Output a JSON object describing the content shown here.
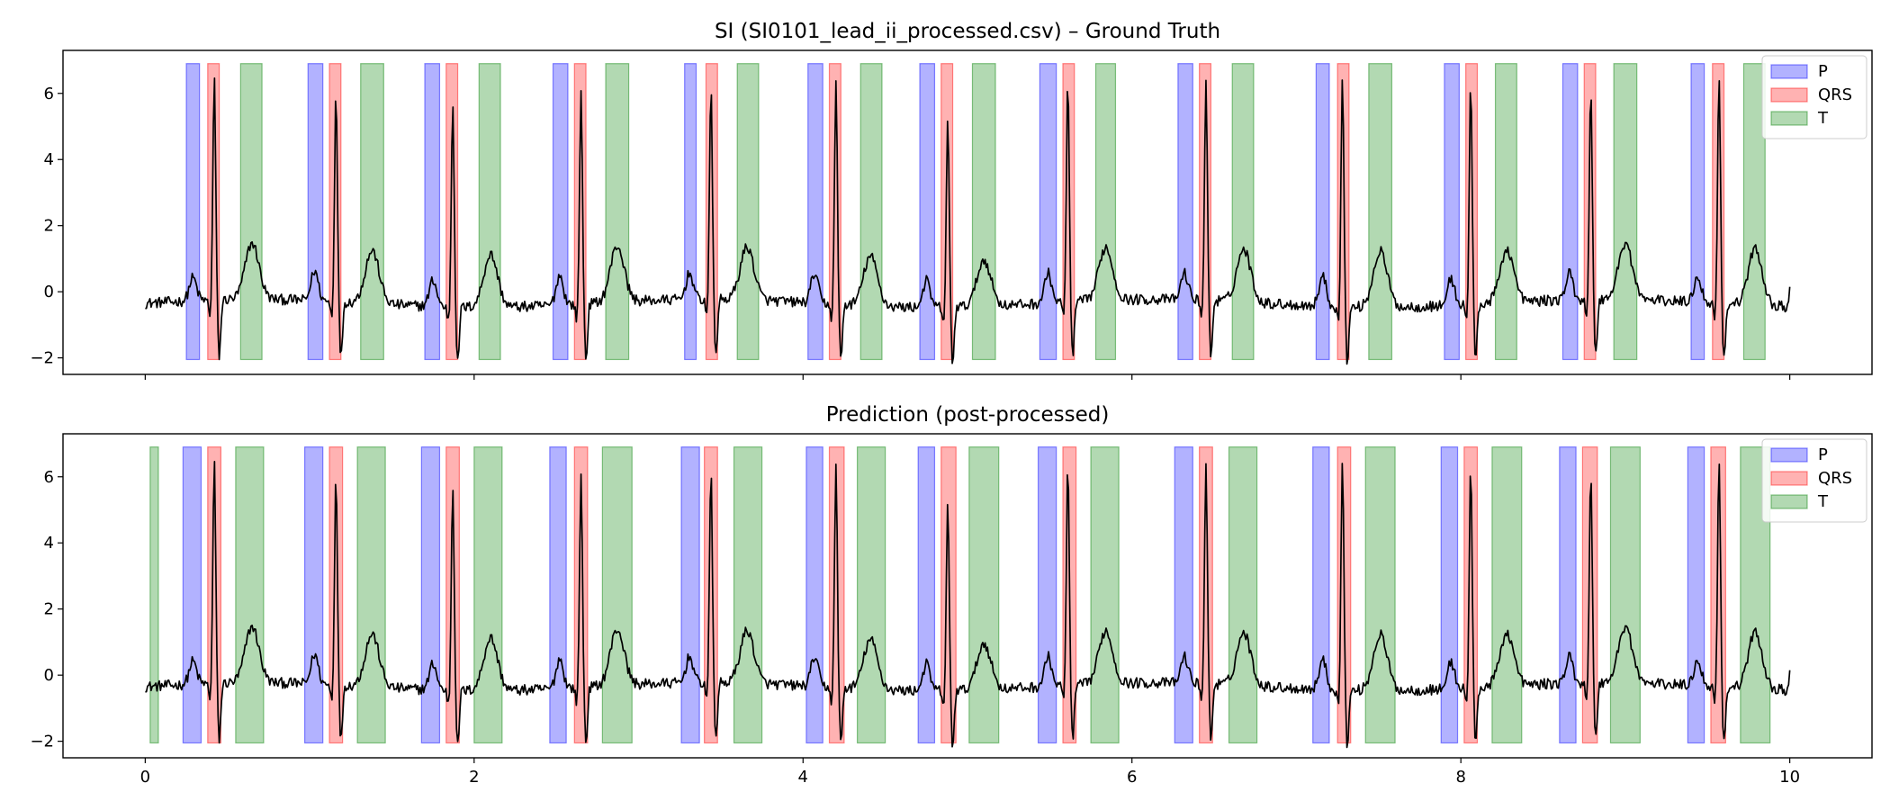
{
  "chart_data": [
    {
      "type": "line",
      "title": "SI (SI0101_lead_ii_processed.csv) – Ground Truth",
      "xlabel": "",
      "ylabel": "",
      "xlim": [
        -0.5,
        10.5
      ],
      "ylim": [
        -2.5,
        7.3
      ],
      "xticks": [
        0,
        2,
        4,
        6,
        8,
        10
      ],
      "xtick_labels_visible": false,
      "yticks": [
        -2,
        0,
        2,
        4,
        6
      ],
      "ytick_labels": [
        "−2",
        "0",
        "2",
        "4",
        "6"
      ],
      "grid": false,
      "legend": {
        "position": "top-right",
        "entries": [
          "P",
          "QRS",
          "T"
        ]
      },
      "band_range": [
        -2.05,
        6.9
      ],
      "segments": {
        "P": [
          [
            0.25,
            0.33
          ],
          [
            0.99,
            1.08
          ],
          [
            1.7,
            1.79
          ],
          [
            2.48,
            2.57
          ],
          [
            3.28,
            3.35
          ],
          [
            4.03,
            4.12
          ],
          [
            4.71,
            4.8
          ],
          [
            5.44,
            5.54
          ],
          [
            6.28,
            6.37
          ],
          [
            7.12,
            7.2
          ],
          [
            7.9,
            7.99
          ],
          [
            8.62,
            8.71
          ],
          [
            9.4,
            9.48
          ]
        ],
        "QRS": [
          [
            0.38,
            0.45
          ],
          [
            1.12,
            1.19
          ],
          [
            1.83,
            1.9
          ],
          [
            2.61,
            2.68
          ],
          [
            3.41,
            3.48
          ],
          [
            4.16,
            4.23
          ],
          [
            4.84,
            4.91
          ],
          [
            5.58,
            5.65
          ],
          [
            6.41,
            6.48
          ],
          [
            7.25,
            7.32
          ],
          [
            8.03,
            8.1
          ],
          [
            8.75,
            8.82
          ],
          [
            9.53,
            9.6
          ]
        ],
        "T": [
          [
            0.58,
            0.71
          ],
          [
            1.31,
            1.45
          ],
          [
            2.03,
            2.16
          ],
          [
            2.8,
            2.94
          ],
          [
            3.6,
            3.73
          ],
          [
            4.35,
            4.48
          ],
          [
            5.03,
            5.17
          ],
          [
            5.78,
            5.9
          ],
          [
            6.61,
            6.74
          ],
          [
            7.44,
            7.58
          ],
          [
            8.21,
            8.34
          ],
          [
            8.93,
            9.07
          ],
          [
            9.72,
            9.85
          ]
        ]
      },
      "beats": [
        {
          "p": 0.29,
          "r": 0.42,
          "t": 0.65,
          "rAmp": 6.7,
          "pAmp": 0.7,
          "tAmp": 1.7
        },
        {
          "p": 1.03,
          "r": 1.16,
          "t": 1.38,
          "rAmp": 6.4,
          "pAmp": 0.9,
          "tAmp": 1.6
        },
        {
          "p": 1.75,
          "r": 1.87,
          "t": 2.1,
          "rAmp": 6.2,
          "pAmp": 0.8,
          "tAmp": 1.6
        },
        {
          "p": 2.52,
          "r": 2.65,
          "t": 2.87,
          "rAmp": 6.4,
          "pAmp": 0.9,
          "tAmp": 1.7
        },
        {
          "p": 3.31,
          "r": 3.44,
          "t": 3.66,
          "rAmp": 6.4,
          "pAmp": 0.8,
          "tAmp": 1.6
        },
        {
          "p": 4.07,
          "r": 4.2,
          "t": 4.41,
          "rAmp": 6.7,
          "pAmp": 0.9,
          "tAmp": 1.5
        },
        {
          "p": 4.75,
          "r": 4.88,
          "t": 5.1,
          "rAmp": 5.6,
          "pAmp": 0.8,
          "tAmp": 1.4
        },
        {
          "p": 5.49,
          "r": 5.61,
          "t": 5.84,
          "rAmp": 6.7,
          "pAmp": 0.9,
          "tAmp": 1.6
        },
        {
          "p": 6.32,
          "r": 6.45,
          "t": 6.68,
          "rAmp": 6.6,
          "pAmp": 0.8,
          "tAmp": 1.6
        },
        {
          "p": 7.16,
          "r": 7.28,
          "t": 7.51,
          "rAmp": 6.9,
          "pAmp": 0.9,
          "tAmp": 1.7
        },
        {
          "p": 7.94,
          "r": 8.06,
          "t": 8.28,
          "rAmp": 6.7,
          "pAmp": 0.8,
          "tAmp": 1.6
        },
        {
          "p": 8.66,
          "r": 8.79,
          "t": 9.0,
          "rAmp": 6.3,
          "pAmp": 0.8,
          "tAmp": 1.7
        },
        {
          "p": 9.44,
          "r": 9.57,
          "t": 9.79,
          "rAmp": 6.9,
          "pAmp": 0.8,
          "tAmp": 1.7
        }
      ],
      "signal_x_range": [
        0,
        10
      ]
    },
    {
      "type": "line",
      "title": "Prediction (post-processed)",
      "xlabel": "",
      "ylabel": "",
      "xlim": [
        -0.5,
        10.5
      ],
      "ylim": [
        -2.5,
        7.3
      ],
      "xticks": [
        0,
        2,
        4,
        6,
        8,
        10
      ],
      "xtick_labels": [
        "0",
        "2",
        "4",
        "6",
        "8",
        "10"
      ],
      "yticks": [
        -2,
        0,
        2,
        4,
        6
      ],
      "ytick_labels": [
        "−2",
        "0",
        "2",
        "4",
        "6"
      ],
      "grid": false,
      "legend": {
        "position": "top-right",
        "entries": [
          "P",
          "QRS",
          "T"
        ]
      },
      "band_range": [
        -2.05,
        6.9
      ],
      "segments": {
        "P": [
          [
            0.23,
            0.34
          ],
          [
            0.97,
            1.08
          ],
          [
            1.68,
            1.79
          ],
          [
            2.46,
            2.56
          ],
          [
            3.26,
            3.37
          ],
          [
            4.02,
            4.12
          ],
          [
            4.7,
            4.8
          ],
          [
            5.43,
            5.54
          ],
          [
            6.26,
            6.37
          ],
          [
            7.1,
            7.2
          ],
          [
            7.88,
            7.98
          ],
          [
            8.6,
            8.7
          ],
          [
            9.38,
            9.48
          ]
        ],
        "QRS": [
          [
            0.38,
            0.46
          ],
          [
            1.12,
            1.2
          ],
          [
            1.83,
            1.91
          ],
          [
            2.61,
            2.69
          ],
          [
            3.4,
            3.48
          ],
          [
            4.16,
            4.25
          ],
          [
            4.84,
            4.93
          ],
          [
            5.58,
            5.66
          ],
          [
            6.41,
            6.49
          ],
          [
            7.25,
            7.33
          ],
          [
            8.02,
            8.1
          ],
          [
            8.74,
            8.83
          ],
          [
            9.52,
            9.61
          ]
        ],
        "T": [
          [
            0.03,
            0.08
          ],
          [
            0.55,
            0.72
          ],
          [
            1.29,
            1.46
          ],
          [
            2.0,
            2.17
          ],
          [
            2.78,
            2.96
          ],
          [
            3.58,
            3.75
          ],
          [
            4.33,
            4.5
          ],
          [
            5.01,
            5.19
          ],
          [
            5.75,
            5.92
          ],
          [
            6.59,
            6.76
          ],
          [
            7.42,
            7.6
          ],
          [
            8.19,
            8.37
          ],
          [
            8.91,
            9.09
          ],
          [
            9.7,
            9.88
          ]
        ]
      },
      "beats": [
        {
          "p": 0.29,
          "r": 0.42,
          "t": 0.65,
          "rAmp": 6.7,
          "pAmp": 0.7,
          "tAmp": 1.7
        },
        {
          "p": 1.03,
          "r": 1.16,
          "t": 1.38,
          "rAmp": 6.4,
          "pAmp": 0.9,
          "tAmp": 1.6
        },
        {
          "p": 1.75,
          "r": 1.87,
          "t": 2.1,
          "rAmp": 6.2,
          "pAmp": 0.8,
          "tAmp": 1.6
        },
        {
          "p": 2.52,
          "r": 2.65,
          "t": 2.87,
          "rAmp": 6.4,
          "pAmp": 0.9,
          "tAmp": 1.7
        },
        {
          "p": 3.31,
          "r": 3.44,
          "t": 3.66,
          "rAmp": 6.4,
          "pAmp": 0.8,
          "tAmp": 1.6
        },
        {
          "p": 4.07,
          "r": 4.2,
          "t": 4.41,
          "rAmp": 6.7,
          "pAmp": 0.9,
          "tAmp": 1.5
        },
        {
          "p": 4.75,
          "r": 4.88,
          "t": 5.1,
          "rAmp": 5.6,
          "pAmp": 0.8,
          "tAmp": 1.4
        },
        {
          "p": 5.49,
          "r": 5.61,
          "t": 5.84,
          "rAmp": 6.7,
          "pAmp": 0.9,
          "tAmp": 1.6
        },
        {
          "p": 6.32,
          "r": 6.45,
          "t": 6.68,
          "rAmp": 6.6,
          "pAmp": 0.8,
          "tAmp": 1.6
        },
        {
          "p": 7.16,
          "r": 7.28,
          "t": 7.51,
          "rAmp": 6.9,
          "pAmp": 0.9,
          "tAmp": 1.7
        },
        {
          "p": 7.94,
          "r": 8.06,
          "t": 8.28,
          "rAmp": 6.7,
          "pAmp": 0.8,
          "tAmp": 1.6
        },
        {
          "p": 8.66,
          "r": 8.79,
          "t": 9.0,
          "rAmp": 6.3,
          "pAmp": 0.8,
          "tAmp": 1.7
        },
        {
          "p": 9.44,
          "r": 9.57,
          "t": 9.79,
          "rAmp": 6.9,
          "pAmp": 0.8,
          "tAmp": 1.7
        }
      ],
      "signal_x_range": [
        0,
        10
      ]
    }
  ],
  "colors": {
    "P": "#0000ff",
    "QRS": "#ff0000",
    "T": "#008000",
    "signal": "#000000"
  }
}
